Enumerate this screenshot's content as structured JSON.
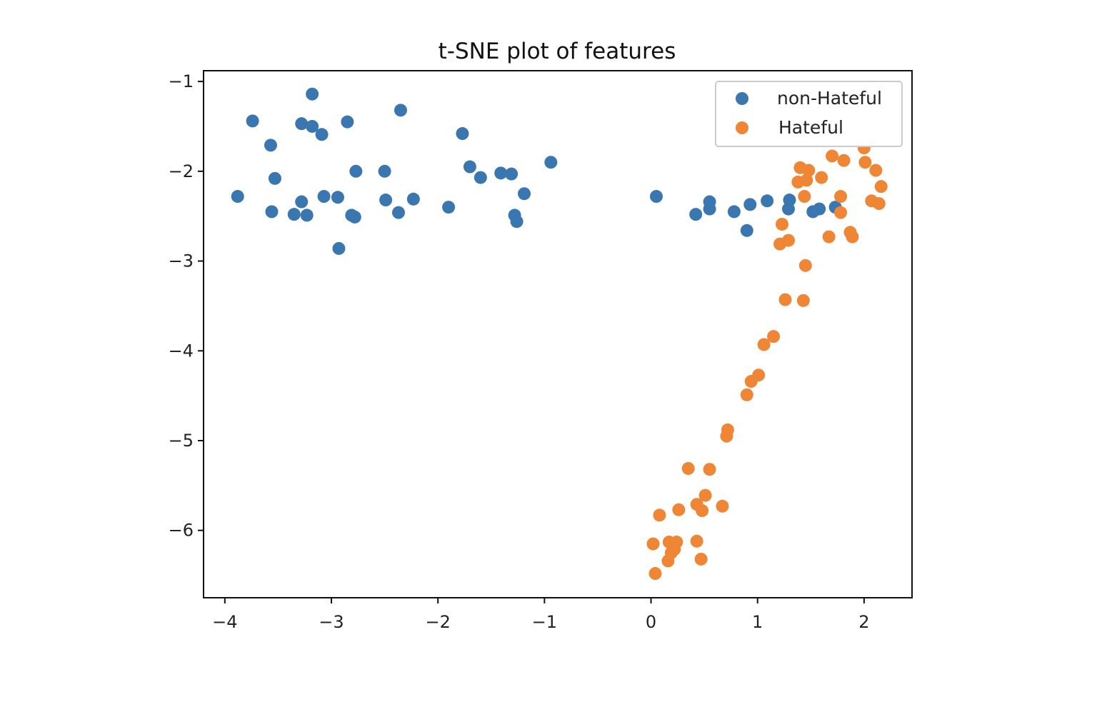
{
  "chart_data": {
    "type": "scatter",
    "title": "t-SNE plot of features",
    "xlabel": "",
    "ylabel": "",
    "xlim": [
      -4.2,
      2.45
    ],
    "ylim": [
      -6.75,
      -0.88
    ],
    "xticks": [
      {
        "value": -4,
        "label": "−4"
      },
      {
        "value": -3,
        "label": "−3"
      },
      {
        "value": -2,
        "label": "−2"
      },
      {
        "value": -1,
        "label": "−1"
      },
      {
        "value": 0,
        "label": "0"
      },
      {
        "value": 1,
        "label": "1"
      },
      {
        "value": 2,
        "label": "2"
      }
    ],
    "yticks": [
      {
        "value": -1,
        "label": "−1"
      },
      {
        "value": -2,
        "label": "−2"
      },
      {
        "value": -3,
        "label": "−3"
      },
      {
        "value": -4,
        "label": "−4"
      },
      {
        "value": -5,
        "label": "−5"
      },
      {
        "value": -6,
        "label": "−6"
      }
    ],
    "grid": false,
    "legend_position": "top-right",
    "series": [
      {
        "name": "non-Hateful",
        "color": "#3a76af",
        "points": [
          [
            -3.88,
            -2.28
          ],
          [
            -3.74,
            -1.44
          ],
          [
            -3.57,
            -1.71
          ],
          [
            -3.56,
            -2.45
          ],
          [
            -3.53,
            -2.08
          ],
          [
            -3.35,
            -2.48
          ],
          [
            -3.28,
            -2.34
          ],
          [
            -3.28,
            -1.47
          ],
          [
            -3.23,
            -2.49
          ],
          [
            -3.18,
            -1.5
          ],
          [
            -3.18,
            -1.14
          ],
          [
            -3.09,
            -1.59
          ],
          [
            -3.07,
            -2.28
          ],
          [
            -2.94,
            -2.29
          ],
          [
            -2.93,
            -2.86
          ],
          [
            -2.85,
            -1.45
          ],
          [
            -2.81,
            -2.49
          ],
          [
            -2.78,
            -2.51
          ],
          [
            -2.77,
            -2.0
          ],
          [
            -2.5,
            -2.0
          ],
          [
            -2.49,
            -2.32
          ],
          [
            -2.37,
            -2.46
          ],
          [
            -2.35,
            -1.32
          ],
          [
            -2.23,
            -2.31
          ],
          [
            -1.9,
            -2.4
          ],
          [
            -1.77,
            -1.58
          ],
          [
            -1.7,
            -1.95
          ],
          [
            -1.6,
            -2.07
          ],
          [
            -1.41,
            -2.02
          ],
          [
            -1.31,
            -2.03
          ],
          [
            -1.28,
            -2.49
          ],
          [
            -1.26,
            -2.56
          ],
          [
            -1.19,
            -2.25
          ],
          [
            -0.94,
            -1.9
          ],
          [
            0.05,
            -2.28
          ],
          [
            0.42,
            -2.48
          ],
          [
            0.55,
            -2.34
          ],
          [
            0.55,
            -2.42
          ],
          [
            0.78,
            -2.45
          ],
          [
            0.9,
            -2.66
          ],
          [
            0.93,
            -2.37
          ],
          [
            1.09,
            -2.33
          ],
          [
            1.29,
            -2.42
          ],
          [
            1.3,
            -2.32
          ],
          [
            1.52,
            -2.45
          ],
          [
            1.58,
            -2.42
          ],
          [
            1.73,
            -2.4
          ]
        ]
      },
      {
        "name": "Hateful",
        "color": "#ef8636",
        "points": [
          [
            0.02,
            -6.15
          ],
          [
            0.04,
            -6.48
          ],
          [
            0.08,
            -5.83
          ],
          [
            0.16,
            -6.34
          ],
          [
            0.17,
            -6.13
          ],
          [
            0.19,
            -6.25
          ],
          [
            0.22,
            -6.21
          ],
          [
            0.24,
            -6.13
          ],
          [
            0.26,
            -5.77
          ],
          [
            0.35,
            -5.31
          ],
          [
            0.43,
            -6.12
          ],
          [
            0.43,
            -5.71
          ],
          [
            0.47,
            -6.32
          ],
          [
            0.48,
            -5.78
          ],
          [
            0.51,
            -5.61
          ],
          [
            0.55,
            -5.32
          ],
          [
            0.67,
            -5.73
          ],
          [
            0.71,
            -4.95
          ],
          [
            0.72,
            -4.88
          ],
          [
            0.9,
            -4.49
          ],
          [
            0.94,
            -4.34
          ],
          [
            1.01,
            -4.27
          ],
          [
            1.06,
            -3.93
          ],
          [
            1.15,
            -3.84
          ],
          [
            1.21,
            -2.81
          ],
          [
            1.23,
            -2.59
          ],
          [
            1.26,
            -3.43
          ],
          [
            1.29,
            -2.77
          ],
          [
            1.38,
            -2.12
          ],
          [
            1.4,
            -1.96
          ],
          [
            1.43,
            -3.44
          ],
          [
            1.44,
            -2.28
          ],
          [
            1.45,
            -3.05
          ],
          [
            1.46,
            -2.1
          ],
          [
            1.48,
            -1.99
          ],
          [
            1.6,
            -2.07
          ],
          [
            1.67,
            -2.73
          ],
          [
            1.7,
            -1.83
          ],
          [
            1.78,
            -2.28
          ],
          [
            1.78,
            -2.46
          ],
          [
            1.81,
            -1.88
          ],
          [
            1.87,
            -2.68
          ],
          [
            1.89,
            -2.73
          ],
          [
            2.0,
            -1.74
          ],
          [
            2.01,
            -1.9
          ],
          [
            2.07,
            -2.33
          ],
          [
            2.11,
            -1.99
          ],
          [
            2.14,
            -2.36
          ],
          [
            2.16,
            -2.17
          ]
        ]
      }
    ]
  }
}
